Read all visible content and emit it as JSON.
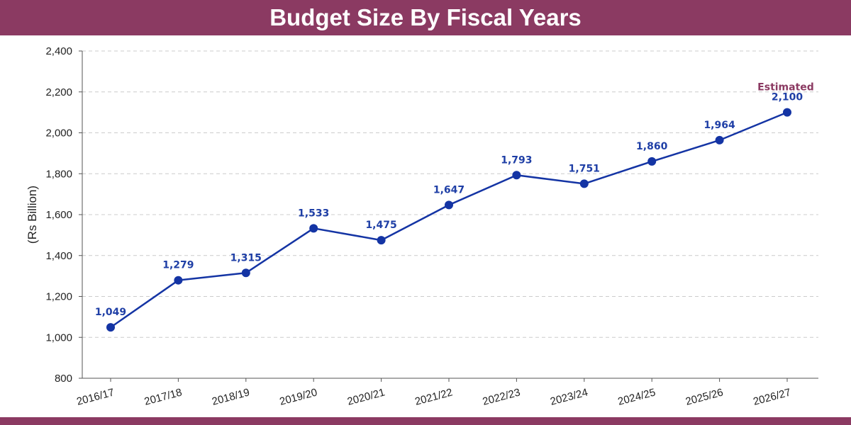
{
  "header": {
    "title": "Budget Size By Fiscal Years"
  },
  "colors": {
    "banner": "#8b3a62",
    "line": "#1434a4",
    "label": "#1f3fa6",
    "grid": "#cccccc"
  },
  "chart_data": {
    "type": "line",
    "title": "Budget Size By Fiscal Years",
    "xlabel": "",
    "ylabel": "(Rs Billion)",
    "ylim": [
      800,
      2400
    ],
    "yticks": [
      800,
      1000,
      1200,
      1400,
      1600,
      1800,
      2000,
      2200,
      2400
    ],
    "ytick_labels": [
      "800",
      "1,000",
      "1,200",
      "1,400",
      "1,600",
      "1,800",
      "2,000",
      "2,200",
      "2,400"
    ],
    "categories": [
      "2016/17",
      "2017/18",
      "2018/19",
      "2019/20",
      "2020/21",
      "2021/22",
      "2022/23",
      "2023/24",
      "2024/25",
      "2025/26",
      "2026/27"
    ],
    "series": [
      {
        "values": [
          1049,
          1279,
          1315,
          1533,
          1475,
          1647,
          1793,
          1751,
          1860,
          1964,
          2100
        ],
        "labels": [
          "1,049",
          "1,279",
          "1,315",
          "1,533",
          "1,475",
          "1,647",
          "1,793",
          "1,751",
          "1,860",
          "1,964",
          "2,100"
        ]
      }
    ],
    "annotation": {
      "text": "Estimated",
      "category": "2026/27"
    },
    "grid": true,
    "legend": "none"
  }
}
